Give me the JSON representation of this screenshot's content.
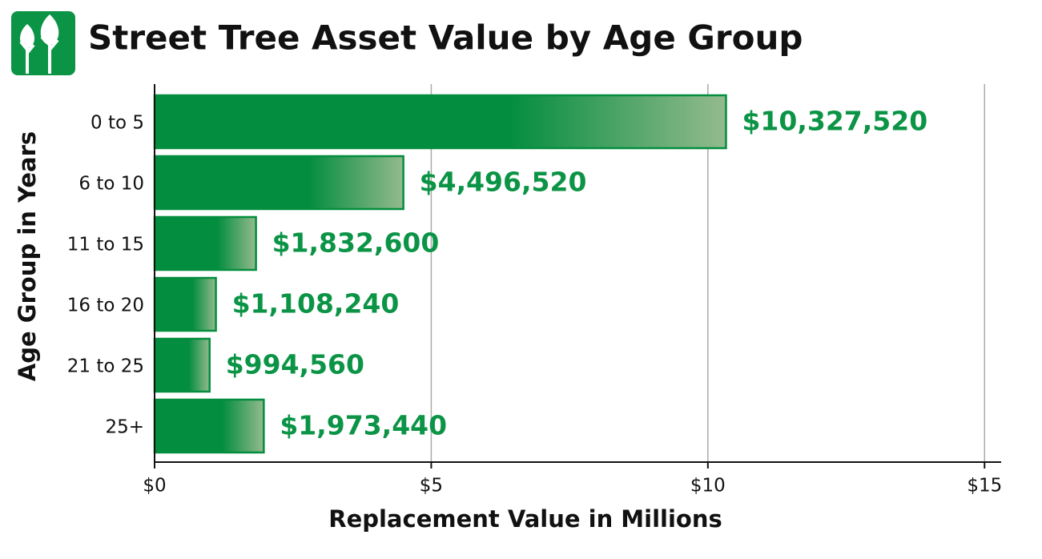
{
  "chart_data": {
    "type": "hbar",
    "title": "Street Tree Asset Value by Age Group",
    "x_label": "Replacement Value in Millions",
    "y_label": "Age Group in Years",
    "categories": [
      "0 to 5",
      "6 to 10",
      "11 to 15",
      "16 to 20",
      "21 to 25",
      "25+"
    ],
    "values": [
      10.32752,
      4.49652,
      1.8326,
      1.10824,
      0.99456,
      1.97344
    ],
    "value_labels": [
      "$10,327,520",
      "$4,496,520",
      "$1,832,600",
      "$1,108,240",
      "$994,560",
      "$1,973,440"
    ],
    "color": "#038d3f",
    "xlim": [
      0,
      15.3
    ],
    "xticks": [
      {
        "value": 0,
        "label": "$0"
      },
      {
        "value": 5,
        "label": "$5"
      },
      {
        "value": 10,
        "label": "$10"
      },
      {
        "value": 15,
        "label": "$15"
      }
    ],
    "grid": true
  }
}
